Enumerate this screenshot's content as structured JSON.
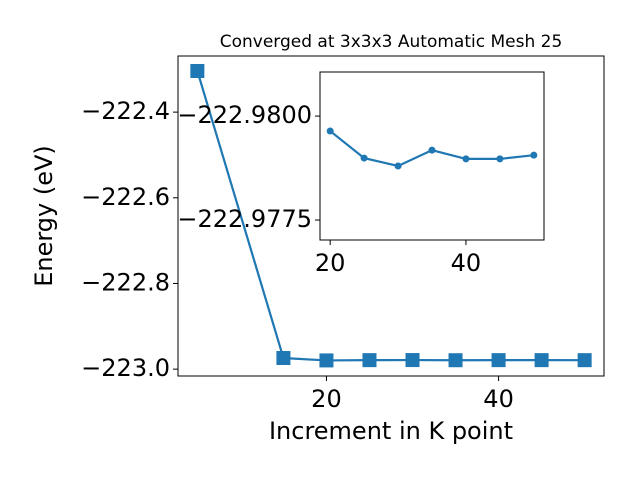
{
  "chart_data": [
    {
      "type": "line",
      "title": "Converged at 3x3x3 Automatic Mesh 25",
      "x_label": "Increment in K point",
      "y_label": "Energy (eV)",
      "x": [
        5,
        15,
        20,
        25,
        30,
        35,
        40,
        45,
        50
      ],
      "series": [
        {
          "color": "#1f77b4",
          "marker": "square",
          "values": [
            -222.304,
            -222.974,
            -222.97964,
            -222.97899,
            -222.9788,
            -222.97918,
            -222.97897,
            -222.97897,
            -222.97906
          ]
        }
      ],
      "xlim": [
        2.75,
        52.25
      ],
      "ylim": [
        -223.016,
        -222.269
      ],
      "xticks": [
        20,
        40
      ],
      "yticks": [
        {
          "value": -222.4,
          "label": "−222.4"
        },
        {
          "value": -222.6,
          "label": "−222.6"
        },
        {
          "value": -222.8,
          "label": "−222.8"
        },
        {
          "value": -223.0,
          "label": "−223.0"
        }
      ]
    },
    {
      "type": "line",
      "x": [
        20,
        25,
        30,
        35,
        40,
        45,
        50
      ],
      "series": [
        {
          "color": "#1f77b4",
          "marker": "circle",
          "values": [
            -222.97964,
            -222.97899,
            -222.9788,
            -222.97918,
            -222.97897,
            -222.97897,
            -222.97906
          ]
        }
      ],
      "xlim": [
        18.5,
        51.5
      ],
      "ylim": [
        -222.97702,
        -222.98106
      ],
      "xticks": [
        20,
        40
      ],
      "yticks": [
        {
          "value": -222.98,
          "label": "−222.9800"
        },
        {
          "value": -222.9775,
          "label": "−222.9775"
        }
      ]
    }
  ]
}
